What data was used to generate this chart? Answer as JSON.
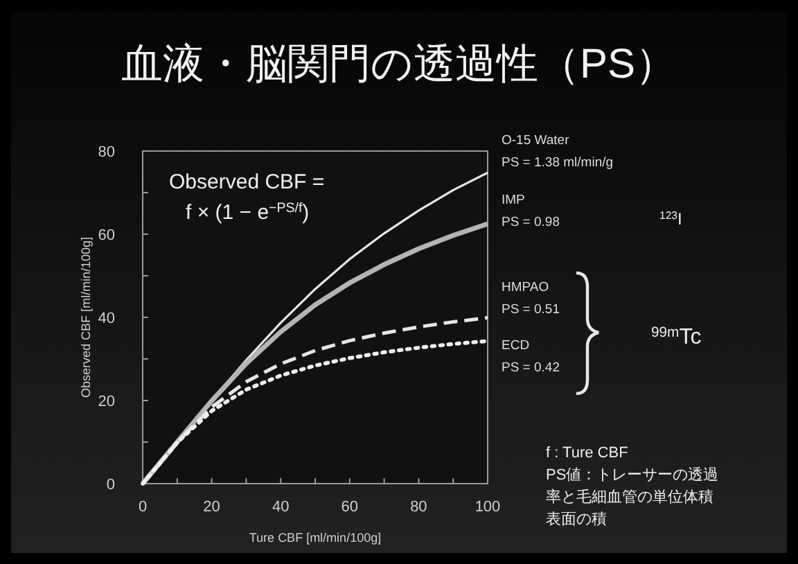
{
  "chart_data": {
    "type": "line",
    "title": "血液・脳関門の透過性（PS）",
    "xlabel": "Ture CBF [ml/min/100g]",
    "ylabel": "Observed CBF [ml/min/100g]",
    "x": [
      0,
      10,
      20,
      30,
      40,
      50,
      60,
      70,
      80,
      90,
      100
    ],
    "series": [
      {
        "name": "O-15 Water\nPS = 1.38 ml/min/g",
        "color": "#e6e6e6",
        "line_style": "solid",
        "values": [
          0,
          10.0,
          20.0,
          29.7,
          38.7,
          46.8,
          54.0,
          60.2,
          65.7,
          70.6,
          74.8
        ]
      },
      {
        "name": "IMP\nPS = 0.98",
        "color": "#b4b4b4",
        "line_style": "solid",
        "values": [
          0,
          10.0,
          19.9,
          28.9,
          36.5,
          43.0,
          48.3,
          52.7,
          56.5,
          59.7,
          62.5
        ]
      },
      {
        "name": "HMPAO\nPS = 0.51",
        "color": "#e6e6e6",
        "line_style": "dashed",
        "values": [
          0,
          9.9,
          18.4,
          24.5,
          28.8,
          32.0,
          34.4,
          36.2,
          37.7,
          38.9,
          39.9
        ]
      },
      {
        "name": "ECD\nPS = 0.42",
        "color": "#f0f0f0",
        "line_style": "dotted",
        "values": [
          0,
          9.9,
          17.5,
          22.6,
          26.0,
          28.4,
          30.2,
          31.6,
          32.7,
          33.6,
          34.3
        ]
      }
    ],
    "xlim": [
      0,
      100
    ],
    "ylim": [
      0,
      80
    ],
    "xticks": [
      0,
      {
        "value": 10,
        "label": null
      },
      20,
      {
        "value": 30,
        "label": null
      },
      40,
      {
        "value": 50,
        "label": null
      },
      60,
      {
        "value": 70,
        "label": null
      },
      80,
      {
        "value": 90,
        "label": null
      },
      100
    ],
    "yticks": [
      0,
      {
        "value": 10,
        "label": null
      },
      20,
      {
        "value": 30,
        "label": null
      },
      40,
      {
        "value": 50,
        "label": null
      },
      60,
      {
        "value": 70,
        "label": null
      },
      80
    ],
    "grid": false,
    "annotations": [
      "Observed CBF =\nf × (1 − e$^{−PS/f}$)",
      "$^{123}$I",
      "$^{99m}$Tc",
      "f : Ture CBF",
      "PS値：トレーサーの透過",
      "率と毛細血管の単位体積",
      "表面の積"
    ]
  }
}
